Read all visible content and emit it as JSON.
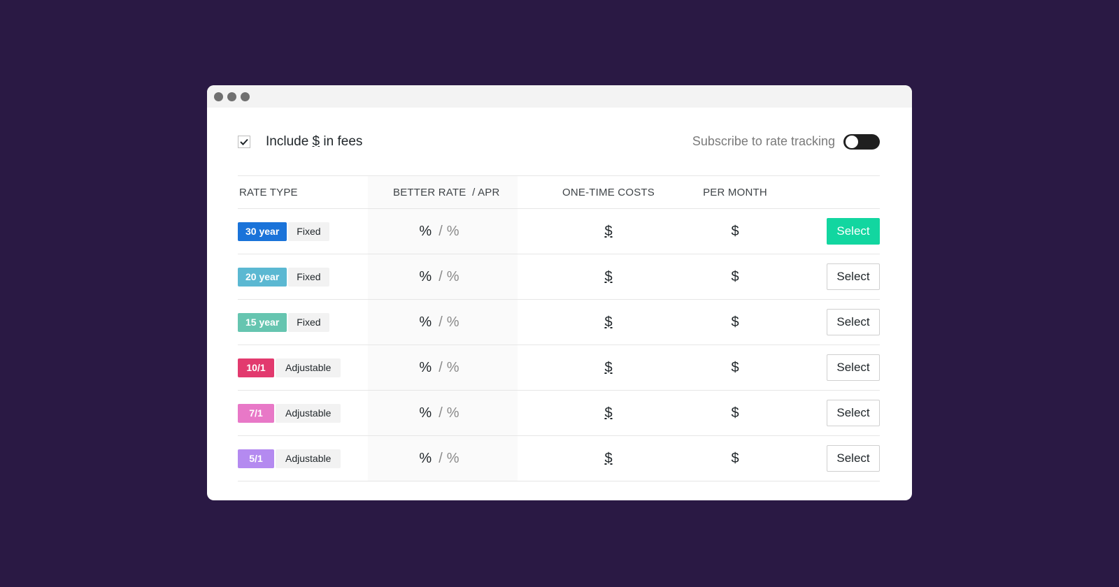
{
  "window": {
    "dots": [
      "close",
      "minimize",
      "maximize"
    ]
  },
  "toolbar": {
    "fees_prefix": "Include ",
    "fees_symbol": "$",
    "fees_suffix": " in fees",
    "fees_checked": true,
    "subscribe_label": "Subscribe to rate tracking",
    "subscribe_on": false
  },
  "table": {
    "headers": {
      "rate_type": "RATE TYPE",
      "better_rate": "BETTER RATE  / APR",
      "one_time": "ONE-TIME COSTS",
      "per_month": "PER MONTH"
    },
    "rows": [
      {
        "term": "30 year",
        "kind": "Fixed",
        "term_color": "#1a73d9",
        "rate": "%",
        "slash": "/",
        "apr": "%",
        "one_time": "$",
        "per_month": "$",
        "select": "Select",
        "selected": true
      },
      {
        "term": "20 year",
        "kind": "Fixed",
        "term_color": "#5bb8d2",
        "rate": "%",
        "slash": "/",
        "apr": "%",
        "one_time": "$",
        "per_month": "$",
        "select": "Select",
        "selected": false
      },
      {
        "term": "15 year",
        "kind": "Fixed",
        "term_color": "#66c5b0",
        "rate": "%",
        "slash": "/",
        "apr": "%",
        "one_time": "$",
        "per_month": "$",
        "select": "Select",
        "selected": false
      },
      {
        "term": "10/1",
        "kind": "Adjustable",
        "term_color": "#e23a6e",
        "rate": "%",
        "slash": "/",
        "apr": "%",
        "one_time": "$",
        "per_month": "$",
        "select": "Select",
        "selected": false
      },
      {
        "term": "7/1",
        "kind": "Adjustable",
        "term_color": "#e878c7",
        "rate": "%",
        "slash": "/",
        "apr": "%",
        "one_time": "$",
        "per_month": "$",
        "select": "Select",
        "selected": false
      },
      {
        "term": "5/1",
        "kind": "Adjustable",
        "term_color": "#b48af0",
        "rate": "%",
        "slash": "/",
        "apr": "%",
        "one_time": "$",
        "per_month": "$",
        "select": "Select",
        "selected": false
      }
    ]
  },
  "colors": {
    "background": "#2a1944",
    "primary_button": "#12d6a0"
  }
}
